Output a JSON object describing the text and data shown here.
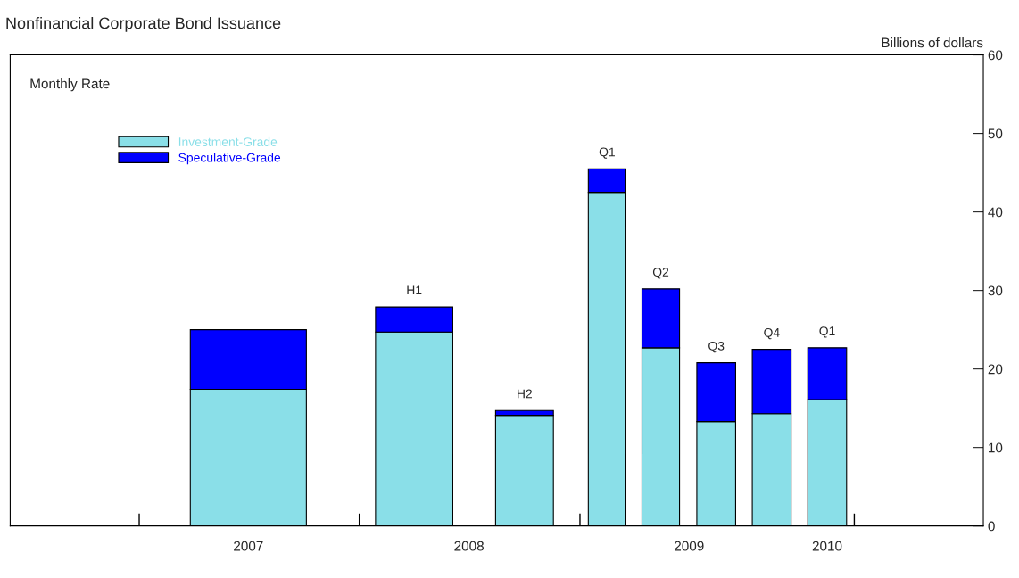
{
  "chart_data": {
    "type": "bar",
    "title": "Nonfinancial Corporate Bond Issuance",
    "ylabel": "Billions of dollars",
    "stacked": true,
    "x": [
      "2007-07-01",
      "2008-04-01",
      "2008-10-01",
      "2009-02-15",
      "2009-05-15",
      "2009-08-15",
      "2009-11-15",
      "2010-02-15"
    ],
    "series": [
      {
        "name": "Investment-Grade",
        "color": "#8adfe8",
        "values": [
          17.4,
          24.7,
          14.1,
          42.5,
          22.7,
          13.3,
          14.3,
          16.1
        ]
      },
      {
        "name": "Speculative-Grade",
        "color": "#0000ff",
        "values": [
          7.6,
          3.2,
          0.6,
          3.0,
          7.5,
          7.5,
          8.2,
          6.6
        ]
      }
    ],
    "xlim": [
      "2006-06-01",
      "2010-11-01"
    ],
    "xticks": [
      {
        "value": "2007-01-01",
        "label": null
      },
      {
        "value": "2007-07-01",
        "label": "2007"
      },
      {
        "value": "2008-01-01",
        "label": null
      },
      {
        "value": "2008-07-01",
        "label": "2008"
      },
      {
        "value": "2009-01-01",
        "label": null
      },
      {
        "value": "2009-07-01",
        "label": "2009"
      },
      {
        "value": "2010-02-15",
        "label": "2010"
      },
      {
        "value": "2010-04-01",
        "label": null
      }
    ],
    "ylim": [
      0,
      60
    ],
    "yticks": [
      0,
      10,
      20,
      30,
      40,
      50,
      60
    ],
    "annotations": [
      "Monthly Rate",
      {
        "text": "H1",
        "x": "2008-04-01",
        "y": 27.9
      },
      {
        "text": "H2",
        "x": "2008-10-01",
        "y": 14.7
      },
      {
        "text": "Q1",
        "x": "2009-02-15",
        "y": 45.5
      },
      {
        "text": "Q2",
        "x": "2009-05-15",
        "y": 30.2
      },
      {
        "text": "Q3",
        "x": "2009-08-15",
        "y": 20.8
      },
      {
        "text": "Q4",
        "x": "2009-11-15",
        "y": 22.5
      },
      {
        "text": "Q1",
        "x": "2010-02-15",
        "y": 22.7
      }
    ],
    "legend": "top left",
    "grid": false
  }
}
